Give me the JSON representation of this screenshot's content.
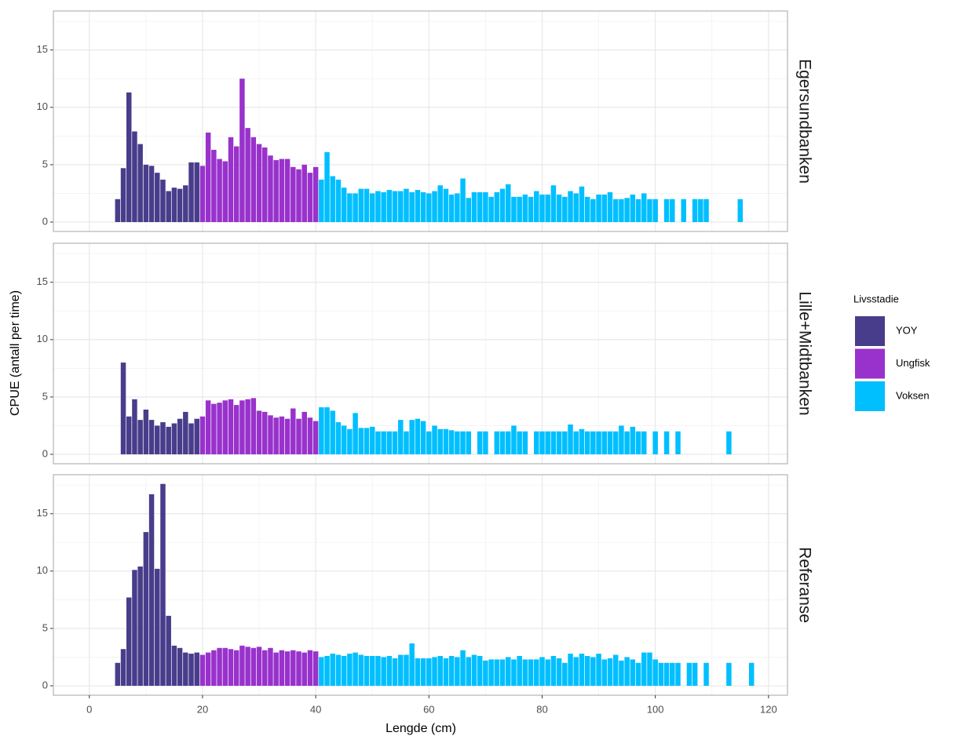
{
  "chart_data": {
    "type": "bar",
    "xlabel": "Lengde (cm)",
    "ylabel": "CPUE (antall per time)",
    "legend_title": "Livsstadie",
    "xlim": [
      -6.35,
      123.35
    ],
    "xticks": [
      0,
      20,
      40,
      60,
      80,
      100,
      120
    ],
    "ylim": [
      -0.82,
      18.4
    ],
    "yticks": [
      0,
      5,
      10,
      15
    ],
    "grid": true,
    "legend": "right",
    "facets": [
      {
        "title": "Egersundbanken",
        "series": [
          {
            "name": "YOY",
            "color": "#483d8b",
            "x": [
              5,
              6,
              7,
              8,
              9,
              10,
              11,
              12,
              13,
              14,
              15,
              16,
              17,
              18,
              19
            ],
            "values": [
              2.0,
              4.7,
              11.3,
              7.9,
              6.8,
              5.0,
              4.9,
              4.3,
              3.7,
              2.7,
              3.0,
              2.9,
              3.2,
              5.2,
              5.2
            ]
          },
          {
            "name": "Ungfisk",
            "color": "#9932cc",
            "x": [
              20,
              21,
              22,
              23,
              24,
              25,
              26,
              27,
              28,
              29,
              30,
              31,
              32,
              33,
              34,
              35,
              36,
              37,
              38,
              39,
              40
            ],
            "values": [
              4.9,
              7.8,
              6.3,
              5.5,
              5.3,
              7.4,
              6.6,
              12.5,
              8.2,
              7.4,
              6.8,
              6.5,
              5.8,
              5.4,
              5.5,
              5.5,
              4.8,
              4.6,
              5.0,
              4.3,
              4.8
            ]
          },
          {
            "name": "Voksen",
            "color": "#00bfff",
            "x": [
              41,
              42,
              43,
              44,
              45,
              46,
              47,
              48,
              49,
              50,
              51,
              52,
              53,
              54,
              55,
              56,
              57,
              58,
              59,
              60,
              61,
              62,
              63,
              64,
              65,
              66,
              67,
              68,
              69,
              70,
              71,
              72,
              73,
              74,
              75,
              76,
              77,
              78,
              79,
              80,
              81,
              82,
              83,
              84,
              85,
              86,
              87,
              88,
              89,
              90,
              91,
              92,
              93,
              94,
              95,
              96,
              97,
              98,
              99,
              100,
              102,
              103,
              105,
              107,
              108,
              109,
              115
            ],
            "values": [
              3.7,
              6.1,
              4.0,
              3.7,
              3.0,
              2.5,
              2.5,
              2.9,
              2.9,
              2.5,
              2.7,
              2.6,
              2.8,
              2.7,
              2.7,
              2.9,
              2.6,
              2.8,
              2.6,
              2.5,
              2.7,
              3.2,
              2.9,
              2.4,
              2.5,
              3.8,
              2.1,
              2.6,
              2.6,
              2.6,
              2.2,
              2.6,
              2.9,
              3.3,
              2.2,
              2.2,
              2.4,
              2.2,
              2.7,
              2.4,
              2.4,
              3.2,
              2.4,
              2.2,
              2.7,
              2.5,
              3.1,
              2.2,
              2.0,
              2.4,
              2.4,
              2.6,
              2.0,
              2.0,
              2.1,
              2.4,
              2.0,
              2.5,
              2.0,
              2.0,
              2.0,
              2.0,
              2.0,
              2.0,
              2.0,
              2.0,
              2.0
            ]
          }
        ]
      },
      {
        "title": "Lille+Midtbanken",
        "series": [
          {
            "name": "YOY",
            "color": "#483d8b",
            "x": [
              6,
              7,
              8,
              9,
              10,
              11,
              12,
              13,
              14,
              15,
              16,
              17,
              18,
              19
            ],
            "values": [
              8.0,
              3.3,
              4.8,
              3.0,
              3.9,
              3.0,
              2.5,
              2.8,
              2.4,
              2.7,
              3.1,
              3.7,
              2.7,
              3.1
            ]
          },
          {
            "name": "Ungfisk",
            "color": "#9932cc",
            "x": [
              20,
              21,
              22,
              23,
              24,
              25,
              26,
              27,
              28,
              29,
              30,
              31,
              32,
              33,
              34,
              35,
              36,
              37,
              38,
              39,
              40
            ],
            "values": [
              3.3,
              4.7,
              4.4,
              4.5,
              4.7,
              4.8,
              4.3,
              4.7,
              4.8,
              4.9,
              3.8,
              3.7,
              3.4,
              3.2,
              3.3,
              3.1,
              4.0,
              3.1,
              3.7,
              3.2,
              2.9
            ]
          },
          {
            "name": "Voksen",
            "color": "#00bfff",
            "x": [
              41,
              42,
              43,
              44,
              45,
              46,
              47,
              48,
              49,
              50,
              51,
              52,
              53,
              54,
              55,
              56,
              57,
              58,
              59,
              60,
              61,
              62,
              63,
              64,
              65,
              66,
              67,
              69,
              70,
              72,
              73,
              74,
              75,
              76,
              77,
              79,
              80,
              81,
              82,
              83,
              84,
              85,
              86,
              87,
              88,
              89,
              90,
              91,
              92,
              93,
              94,
              95,
              96,
              97,
              98,
              100,
              102,
              104,
              113
            ],
            "values": [
              4.1,
              4.1,
              3.8,
              2.8,
              2.5,
              2.2,
              3.6,
              2.3,
              2.3,
              2.4,
              2.0,
              2.0,
              2.0,
              2.0,
              3.0,
              2.0,
              3.0,
              3.1,
              2.9,
              2.0,
              2.5,
              2.2,
              2.2,
              2.1,
              2.0,
              2.0,
              2.0,
              2.0,
              2.0,
              2.0,
              2.0,
              2.0,
              2.5,
              2.0,
              2.0,
              2.0,
              2.0,
              2.0,
              2.0,
              2.0,
              2.0,
              2.6,
              2.0,
              2.2,
              2.0,
              2.0,
              2.0,
              2.0,
              2.0,
              2.0,
              2.5,
              2.0,
              2.4,
              2.0,
              2.0,
              2.0,
              2.0,
              2.0,
              2.0
            ]
          }
        ]
      },
      {
        "title": "Referanse",
        "series": [
          {
            "name": "YOY",
            "color": "#483d8b",
            "x": [
              5,
              6,
              7,
              8,
              9,
              10,
              11,
              12,
              13,
              14,
              15,
              16,
              17,
              18,
              19
            ],
            "values": [
              2.0,
              3.2,
              7.7,
              10.1,
              10.4,
              13.4,
              16.7,
              10.2,
              17.6,
              6.1,
              3.5,
              3.3,
              2.9,
              2.8,
              2.9
            ]
          },
          {
            "name": "Ungfisk",
            "color": "#9932cc",
            "x": [
              20,
              21,
              22,
              23,
              24,
              25,
              26,
              27,
              28,
              29,
              30,
              31,
              32,
              33,
              34,
              35,
              36,
              37,
              38,
              39,
              40
            ],
            "values": [
              2.7,
              2.9,
              3.1,
              3.3,
              3.3,
              3.2,
              3.1,
              3.5,
              3.4,
              3.3,
              3.4,
              3.1,
              3.3,
              2.9,
              3.1,
              3.0,
              3.1,
              3.0,
              2.9,
              3.1,
              3.0
            ]
          },
          {
            "name": "Voksen",
            "color": "#00bfff",
            "x": [
              41,
              42,
              43,
              44,
              45,
              46,
              47,
              48,
              49,
              50,
              51,
              52,
              53,
              54,
              55,
              56,
              57,
              58,
              59,
              60,
              61,
              62,
              63,
              64,
              65,
              66,
              67,
              68,
              69,
              70,
              71,
              72,
              73,
              74,
              75,
              76,
              77,
              78,
              79,
              80,
              81,
              82,
              83,
              84,
              85,
              86,
              87,
              88,
              89,
              90,
              91,
              92,
              93,
              94,
              95,
              96,
              97,
              98,
              99,
              100,
              101,
              102,
              103,
              104,
              106,
              107,
              109,
              113,
              117
            ],
            "values": [
              2.5,
              2.6,
              2.8,
              2.7,
              2.6,
              2.8,
              2.9,
              2.7,
              2.6,
              2.6,
              2.6,
              2.5,
              2.6,
              2.4,
              2.7,
              2.7,
              3.7,
              2.4,
              2.4,
              2.4,
              2.5,
              2.6,
              2.4,
              2.6,
              2.5,
              3.1,
              2.5,
              2.7,
              2.6,
              2.2,
              2.3,
              2.3,
              2.3,
              2.5,
              2.3,
              2.6,
              2.3,
              2.3,
              2.3,
              2.5,
              2.3,
              2.6,
              2.4,
              2.0,
              2.8,
              2.5,
              2.8,
              2.6,
              2.5,
              2.8,
              2.3,
              2.4,
              2.7,
              2.2,
              2.5,
              2.3,
              2.0,
              2.9,
              2.9,
              2.3,
              2.0,
              2.0,
              2.0,
              2.0,
              2.0,
              2.0,
              2.0,
              2.0,
              2.0
            ]
          }
        ]
      }
    ]
  }
}
